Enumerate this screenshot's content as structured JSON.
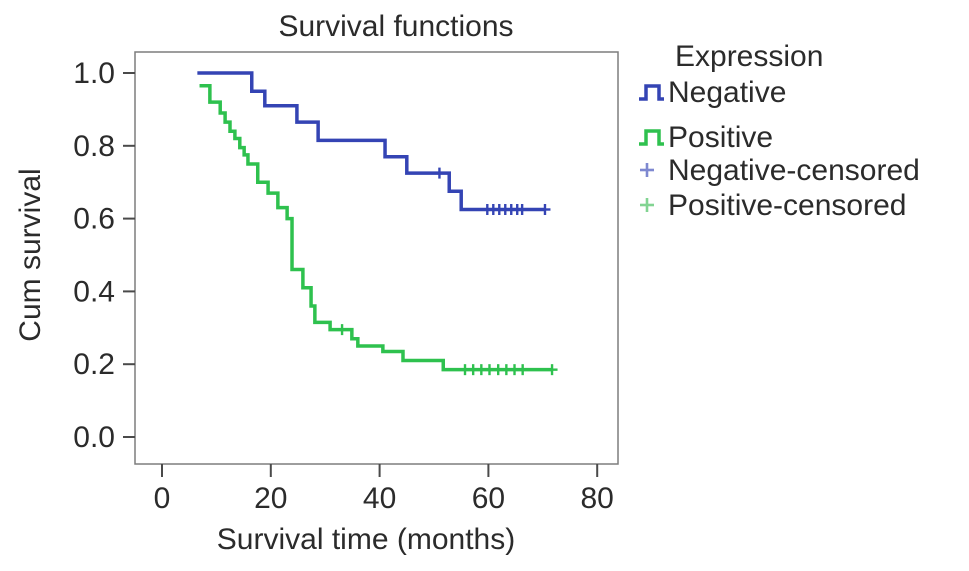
{
  "figure": {
    "background": "#ffffff",
    "plot_border_color": "#7d7d7d",
    "text_color": "#2b2b2b",
    "tick_color": "#4a4a4a"
  },
  "chart_data": {
    "type": "line",
    "subtype": "kaplan-meier-step",
    "title": "Survival functions",
    "xlabel": "Survival time (months)",
    "ylabel": "Cum survival",
    "x_ticks": [
      0,
      20,
      40,
      60,
      80
    ],
    "y_ticks": [
      0.0,
      0.2,
      0.4,
      0.6,
      0.8,
      1.0
    ],
    "xlim": [
      -5,
      84
    ],
    "ylim": [
      -0.07,
      1.06
    ],
    "grid": false,
    "legend_position": "right",
    "series": [
      {
        "name": "Negative",
        "color": "#3444b4",
        "start": [
          6.5,
          1.0
        ],
        "steps": [
          [
            16.5,
            0.95
          ],
          [
            18.9,
            0.91
          ],
          [
            24.8,
            0.865
          ],
          [
            28.7,
            0.815
          ],
          [
            41.0,
            0.77
          ],
          [
            45.0,
            0.725
          ],
          [
            52.8,
            0.675
          ],
          [
            55.0,
            0.625
          ]
        ],
        "end": 70.4,
        "censored": [
          [
            51.0,
            0.725
          ],
          [
            59.8,
            0.625
          ],
          [
            60.9,
            0.625
          ],
          [
            62.0,
            0.625
          ],
          [
            63.1,
            0.625
          ],
          [
            64.2,
            0.625
          ],
          [
            65.3,
            0.625
          ],
          [
            66.2,
            0.625
          ],
          [
            70.4,
            0.625
          ]
        ]
      },
      {
        "name": "Positive",
        "color": "#2ec14e",
        "start": [
          6.9,
          0.965
        ],
        "steps": [
          [
            8.8,
            0.92
          ],
          [
            10.7,
            0.89
          ],
          [
            11.6,
            0.865
          ],
          [
            12.5,
            0.84
          ],
          [
            13.4,
            0.82
          ],
          [
            14.3,
            0.795
          ],
          [
            15.1,
            0.775
          ],
          [
            15.8,
            0.75
          ],
          [
            17.6,
            0.7
          ],
          [
            19.5,
            0.67
          ],
          [
            21.3,
            0.63
          ],
          [
            23.0,
            0.6
          ],
          [
            23.9,
            0.46
          ],
          [
            25.9,
            0.41
          ],
          [
            27.4,
            0.36
          ],
          [
            28.1,
            0.315
          ],
          [
            30.9,
            0.295
          ],
          [
            34.9,
            0.27
          ],
          [
            36.0,
            0.25
          ],
          [
            40.6,
            0.235
          ],
          [
            44.3,
            0.21
          ],
          [
            51.7,
            0.185
          ]
        ],
        "end": 71.7,
        "censored": [
          [
            33.1,
            0.295
          ],
          [
            55.7,
            0.185
          ],
          [
            57.2,
            0.185
          ],
          [
            58.7,
            0.185
          ],
          [
            60.2,
            0.185
          ],
          [
            61.8,
            0.185
          ],
          [
            63.3,
            0.185
          ],
          [
            64.8,
            0.185
          ],
          [
            66.3,
            0.185
          ],
          [
            71.7,
            0.185
          ]
        ]
      }
    ]
  },
  "legend": {
    "header": "Expression",
    "items": [
      {
        "label": "Negative",
        "marker": "step-line",
        "color": "#3444b4"
      },
      {
        "label": "Positive",
        "marker": "step-line",
        "color": "#2ec14e"
      },
      {
        "label": "Negative-censored",
        "marker": "plus",
        "color": "#7e88d0"
      },
      {
        "label": "Positive-censored",
        "marker": "plus",
        "color": "#82d492"
      }
    ]
  }
}
